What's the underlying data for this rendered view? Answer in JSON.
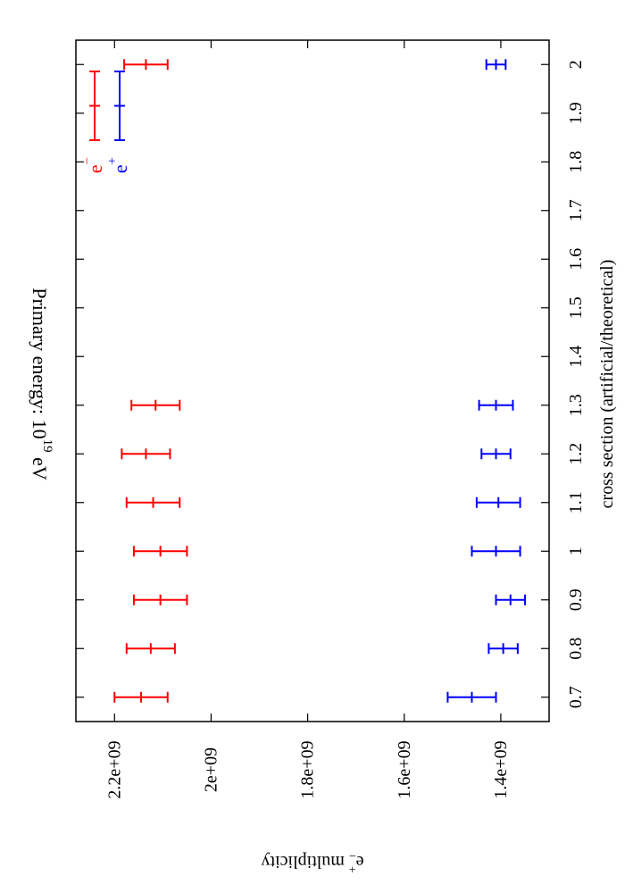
{
  "chart_data": {
    "type": "scatter",
    "orientation": "rotated-90-clockwise",
    "title": {
      "prefix": "Primary energy: 10",
      "superscript": "19",
      "suffix": " eV"
    },
    "xlabel": "cross section (artificial/theoretical)",
    "ylabel": {
      "base": "e",
      "superscript": "+",
      "subscript": "−",
      "suffix": " multiplicity"
    },
    "xlim": [
      0.65,
      2.05
    ],
    "ylim": [
      1300000000.0,
      2280000000.0
    ],
    "x_ticks": [
      {
        "value": 0.7,
        "label": "0.7"
      },
      {
        "value": 0.8,
        "label": "0.8"
      },
      {
        "value": 0.9,
        "label": "0.9"
      },
      {
        "value": 1.0,
        "label": "1"
      },
      {
        "value": 1.1,
        "label": "1.1"
      },
      {
        "value": 1.2,
        "label": "1.2"
      },
      {
        "value": 1.3,
        "label": "1.3"
      },
      {
        "value": 1.4,
        "label": "1.4"
      },
      {
        "value": 1.5,
        "label": "1.5"
      },
      {
        "value": 1.6,
        "label": "1.6"
      },
      {
        "value": 1.7,
        "label": "1.7"
      },
      {
        "value": 1.8,
        "label": "1.8"
      },
      {
        "value": 1.9,
        "label": "1.9"
      },
      {
        "value": 2.0,
        "label": "2"
      }
    ],
    "y_ticks": [
      {
        "value": 1400000000.0,
        "label": "1.4e+09"
      },
      {
        "value": 1600000000.0,
        "label": "1.6e+09"
      },
      {
        "value": 1800000000.0,
        "label": "1.8e+09"
      },
      {
        "value": 2000000000.0,
        "label": "2e+09"
      },
      {
        "value": 2200000000.0,
        "label": "2.2e+09"
      }
    ],
    "grid": false,
    "legend_position": "top-left",
    "series": [
      {
        "name": "e",
        "name_sup": "−",
        "color": "#ff0000",
        "points": [
          {
            "x": 0.7,
            "y": 2145000000.0,
            "err": 55000000.0
          },
          {
            "x": 0.8,
            "y": 2125000000.0,
            "err": 50000000.0
          },
          {
            "x": 0.9,
            "y": 2105000000.0,
            "err": 55000000.0
          },
          {
            "x": 1.0,
            "y": 2105000000.0,
            "err": 55000000.0
          },
          {
            "x": 1.1,
            "y": 2120000000.0,
            "err": 55000000.0
          },
          {
            "x": 1.2,
            "y": 2135000000.0,
            "err": 50000000.0
          },
          {
            "x": 1.3,
            "y": 2115000000.0,
            "err": 50000000.0
          },
          {
            "x": 2.0,
            "y": 2135000000.0,
            "err": 45000000.0
          }
        ]
      },
      {
        "name": "e",
        "name_sup": "+",
        "color": "#0000ff",
        "points": [
          {
            "x": 0.7,
            "y": 1460000000.0,
            "err": 50000000.0
          },
          {
            "x": 0.8,
            "y": 1395000000.0,
            "err": 30000000.0
          },
          {
            "x": 0.9,
            "y": 1380000000.0,
            "err": 30000000.0
          },
          {
            "x": 1.0,
            "y": 1410000000.0,
            "err": 50000000.0
          },
          {
            "x": 1.1,
            "y": 1405000000.0,
            "err": 45000000.0
          },
          {
            "x": 1.2,
            "y": 1410000000.0,
            "err": 30000000.0
          },
          {
            "x": 1.3,
            "y": 1410000000.0,
            "err": 35000000.0
          },
          {
            "x": 2.0,
            "y": 1410000000.0,
            "err": 20000000.0
          }
        ]
      }
    ]
  }
}
